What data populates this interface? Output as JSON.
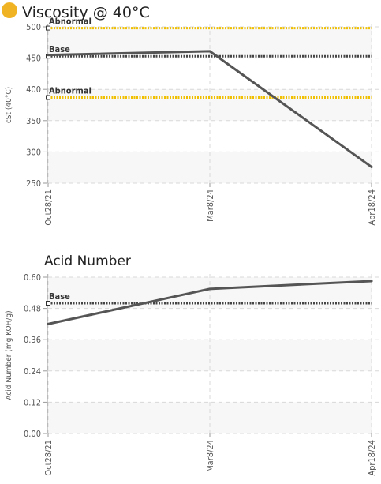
{
  "charts": [
    {
      "title": "Viscosity @ 40°C",
      "status_color": "#F0B323",
      "chart_data": {
        "type": "line",
        "title": "Viscosity @ 40°C",
        "xlabel": "",
        "ylabel": "cSt (40°C)",
        "categories": [
          "Oct28/21",
          "Mar8/24",
          "Apr18/24"
        ],
        "ylim": [
          250,
          500
        ],
        "yticks": [
          "250",
          "300",
          "350",
          "400",
          "450",
          "500"
        ],
        "series": [
          {
            "values": [
              455,
              461,
              276
            ],
            "color": "#555555"
          }
        ],
        "reference_lines": [
          {
            "label": "Abnormal",
            "value": 498,
            "color": "#F0C000",
            "style": "dotted"
          },
          {
            "label": "Base",
            "value": 453,
            "color": "#444444",
            "style": "dotted"
          },
          {
            "label": "Abnormal",
            "value": 387,
            "color": "#F0C000",
            "style": "dotted"
          }
        ],
        "grid": true
      }
    },
    {
      "title": "Acid Number",
      "chart_data": {
        "type": "line",
        "title": "Acid Number",
        "xlabel": "",
        "ylabel": "Acid Number (mg KOH/g)",
        "categories": [
          "Oct28/21",
          "Mar8/24",
          "Apr18/24"
        ],
        "ylim": [
          0,
          0.6
        ],
        "yticks": [
          "0.00",
          "0.12",
          "0.24",
          "0.36",
          "0.48",
          "0.60"
        ],
        "series": [
          {
            "values": [
              0.42,
              0.555,
              0.585
            ],
            "color": "#555555"
          }
        ],
        "reference_lines": [
          {
            "label": "Base",
            "value": 0.5,
            "color": "#444444",
            "style": "dotted"
          }
        ],
        "grid": true
      }
    }
  ]
}
